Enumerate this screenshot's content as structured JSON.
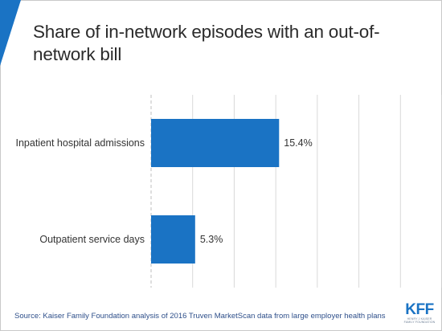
{
  "title": "Share of in-network episodes with an out-of-network bill",
  "source": "Source: Kaiser Family Foundation analysis of 2016 Truven MarketScan data from large employer health plans",
  "logo": {
    "wordmark": "KFF",
    "tagline": "HENRY J KAISER FAMILY FOUNDATION"
  },
  "colors": {
    "bar": "#1a73c4",
    "accent": "#1a73c4",
    "grid": "#d9d9d9"
  },
  "chart_data": {
    "type": "bar",
    "orientation": "horizontal",
    "categories": [
      "Inpatient hospital admissions",
      "Outpatient service days"
    ],
    "values": [
      15.4,
      5.3
    ],
    "value_labels": [
      "15.4%",
      "5.3%"
    ],
    "title": "Share of in-network episodes with an out-of-network bill",
    "xlabel": "",
    "ylabel": "",
    "xlim": [
      0,
      35
    ],
    "grid": true,
    "unit": "%"
  }
}
